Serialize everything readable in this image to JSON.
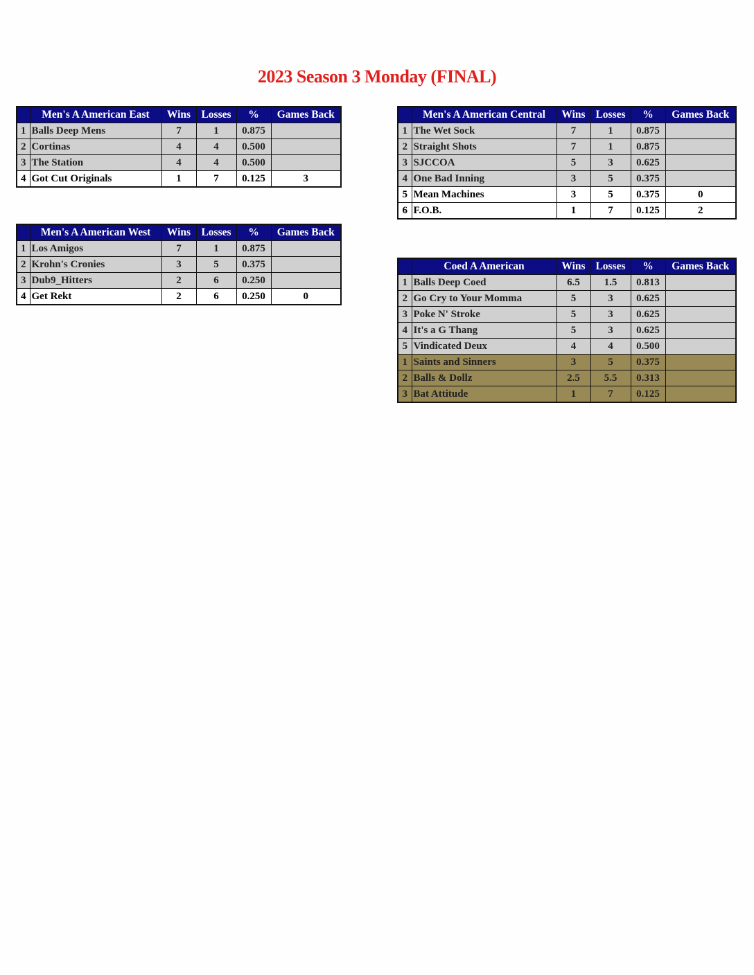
{
  "title": "2023 Season 3 Monday (FINAL)",
  "colors": {
    "title": "#e0201c",
    "header_bg": "#0c0c84",
    "row_bg": "#d0d0d0",
    "gold_row_bg": "#998a55"
  },
  "columns": [
    "Wins",
    "Losses",
    "%",
    "Games Back"
  ],
  "tables": [
    {
      "id": "east",
      "name": "Men's A American East",
      "rows": [
        {
          "rank": "1",
          "team": "Balls Deep Mens",
          "wins": "7",
          "losses": "1",
          "pct": "0.875",
          "gb": ""
        },
        {
          "rank": "2",
          "team": "Cortinas",
          "wins": "4",
          "losses": "4",
          "pct": "0.500",
          "gb": ""
        },
        {
          "rank": "3",
          "team": "The Station",
          "wins": "4",
          "losses": "4",
          "pct": "0.500",
          "gb": ""
        },
        {
          "rank": "4",
          "team": "Got Cut Originals",
          "wins": "1",
          "losses": "7",
          "pct": "0.125",
          "gb": "3",
          "style": "last"
        }
      ]
    },
    {
      "id": "central",
      "name": "Men's A American Central",
      "rows": [
        {
          "rank": "1",
          "team": "The Wet Sock",
          "wins": "7",
          "losses": "1",
          "pct": "0.875",
          "gb": ""
        },
        {
          "rank": "2",
          "team": "Straight Shots",
          "wins": "7",
          "losses": "1",
          "pct": "0.875",
          "gb": ""
        },
        {
          "rank": "3",
          "team": "SJCCOA",
          "wins": "5",
          "losses": "3",
          "pct": "0.625",
          "gb": ""
        },
        {
          "rank": "4",
          "team": "One Bad Inning",
          "wins": "3",
          "losses": "5",
          "pct": "0.375",
          "gb": ""
        },
        {
          "rank": "5",
          "team": "Mean Machines",
          "wins": "3",
          "losses": "5",
          "pct": "0.375",
          "gb": "0",
          "style": "last"
        },
        {
          "rank": "6",
          "team": "F.O.B.",
          "wins": "1",
          "losses": "7",
          "pct": "0.125",
          "gb": "2",
          "style": "last"
        }
      ]
    },
    {
      "id": "west",
      "name": "Men's A American West",
      "rows": [
        {
          "rank": "1",
          "team": "Los Amigos",
          "wins": "7",
          "losses": "1",
          "pct": "0.875",
          "gb": ""
        },
        {
          "rank": "2",
          "team": "Krohn's Cronies",
          "wins": "3",
          "losses": "5",
          "pct": "0.375",
          "gb": ""
        },
        {
          "rank": "3",
          "team": "Dub9_Hitters",
          "wins": "2",
          "losses": "6",
          "pct": "0.250",
          "gb": ""
        },
        {
          "rank": "4",
          "team": "Get Rekt",
          "wins": "2",
          "losses": "6",
          "pct": "0.250",
          "gb": "0",
          "style": "last"
        }
      ]
    },
    {
      "id": "coed",
      "name": "Coed A American",
      "rows": [
        {
          "rank": "1",
          "team": "Balls Deep Coed",
          "wins": "6.5",
          "losses": "1.5",
          "pct": "0.813",
          "gb": ""
        },
        {
          "rank": "2",
          "team": "Go Cry to Your Momma",
          "wins": "5",
          "losses": "3",
          "pct": "0.625",
          "gb": ""
        },
        {
          "rank": "3",
          "team": "Poke N' Stroke",
          "wins": "5",
          "losses": "3",
          "pct": "0.625",
          "gb": ""
        },
        {
          "rank": "4",
          "team": "It's a G Thang",
          "wins": "5",
          "losses": "3",
          "pct": "0.625",
          "gb": ""
        },
        {
          "rank": "5",
          "team": "Vindicated Deux",
          "wins": "4",
          "losses": "4",
          "pct": "0.500",
          "gb": ""
        },
        {
          "rank": "1",
          "team": "Saints and Sinners",
          "wins": "3",
          "losses": "5",
          "pct": "0.375",
          "gb": "",
          "style": "gold"
        },
        {
          "rank": "2",
          "team": "Balls & Dollz",
          "wins": "2.5",
          "losses": "5.5",
          "pct": "0.313",
          "gb": "",
          "style": "gold"
        },
        {
          "rank": "3",
          "team": "Bat Attitude",
          "wins": "1",
          "losses": "7",
          "pct": "0.125",
          "gb": "",
          "style": "gold"
        }
      ]
    }
  ]
}
